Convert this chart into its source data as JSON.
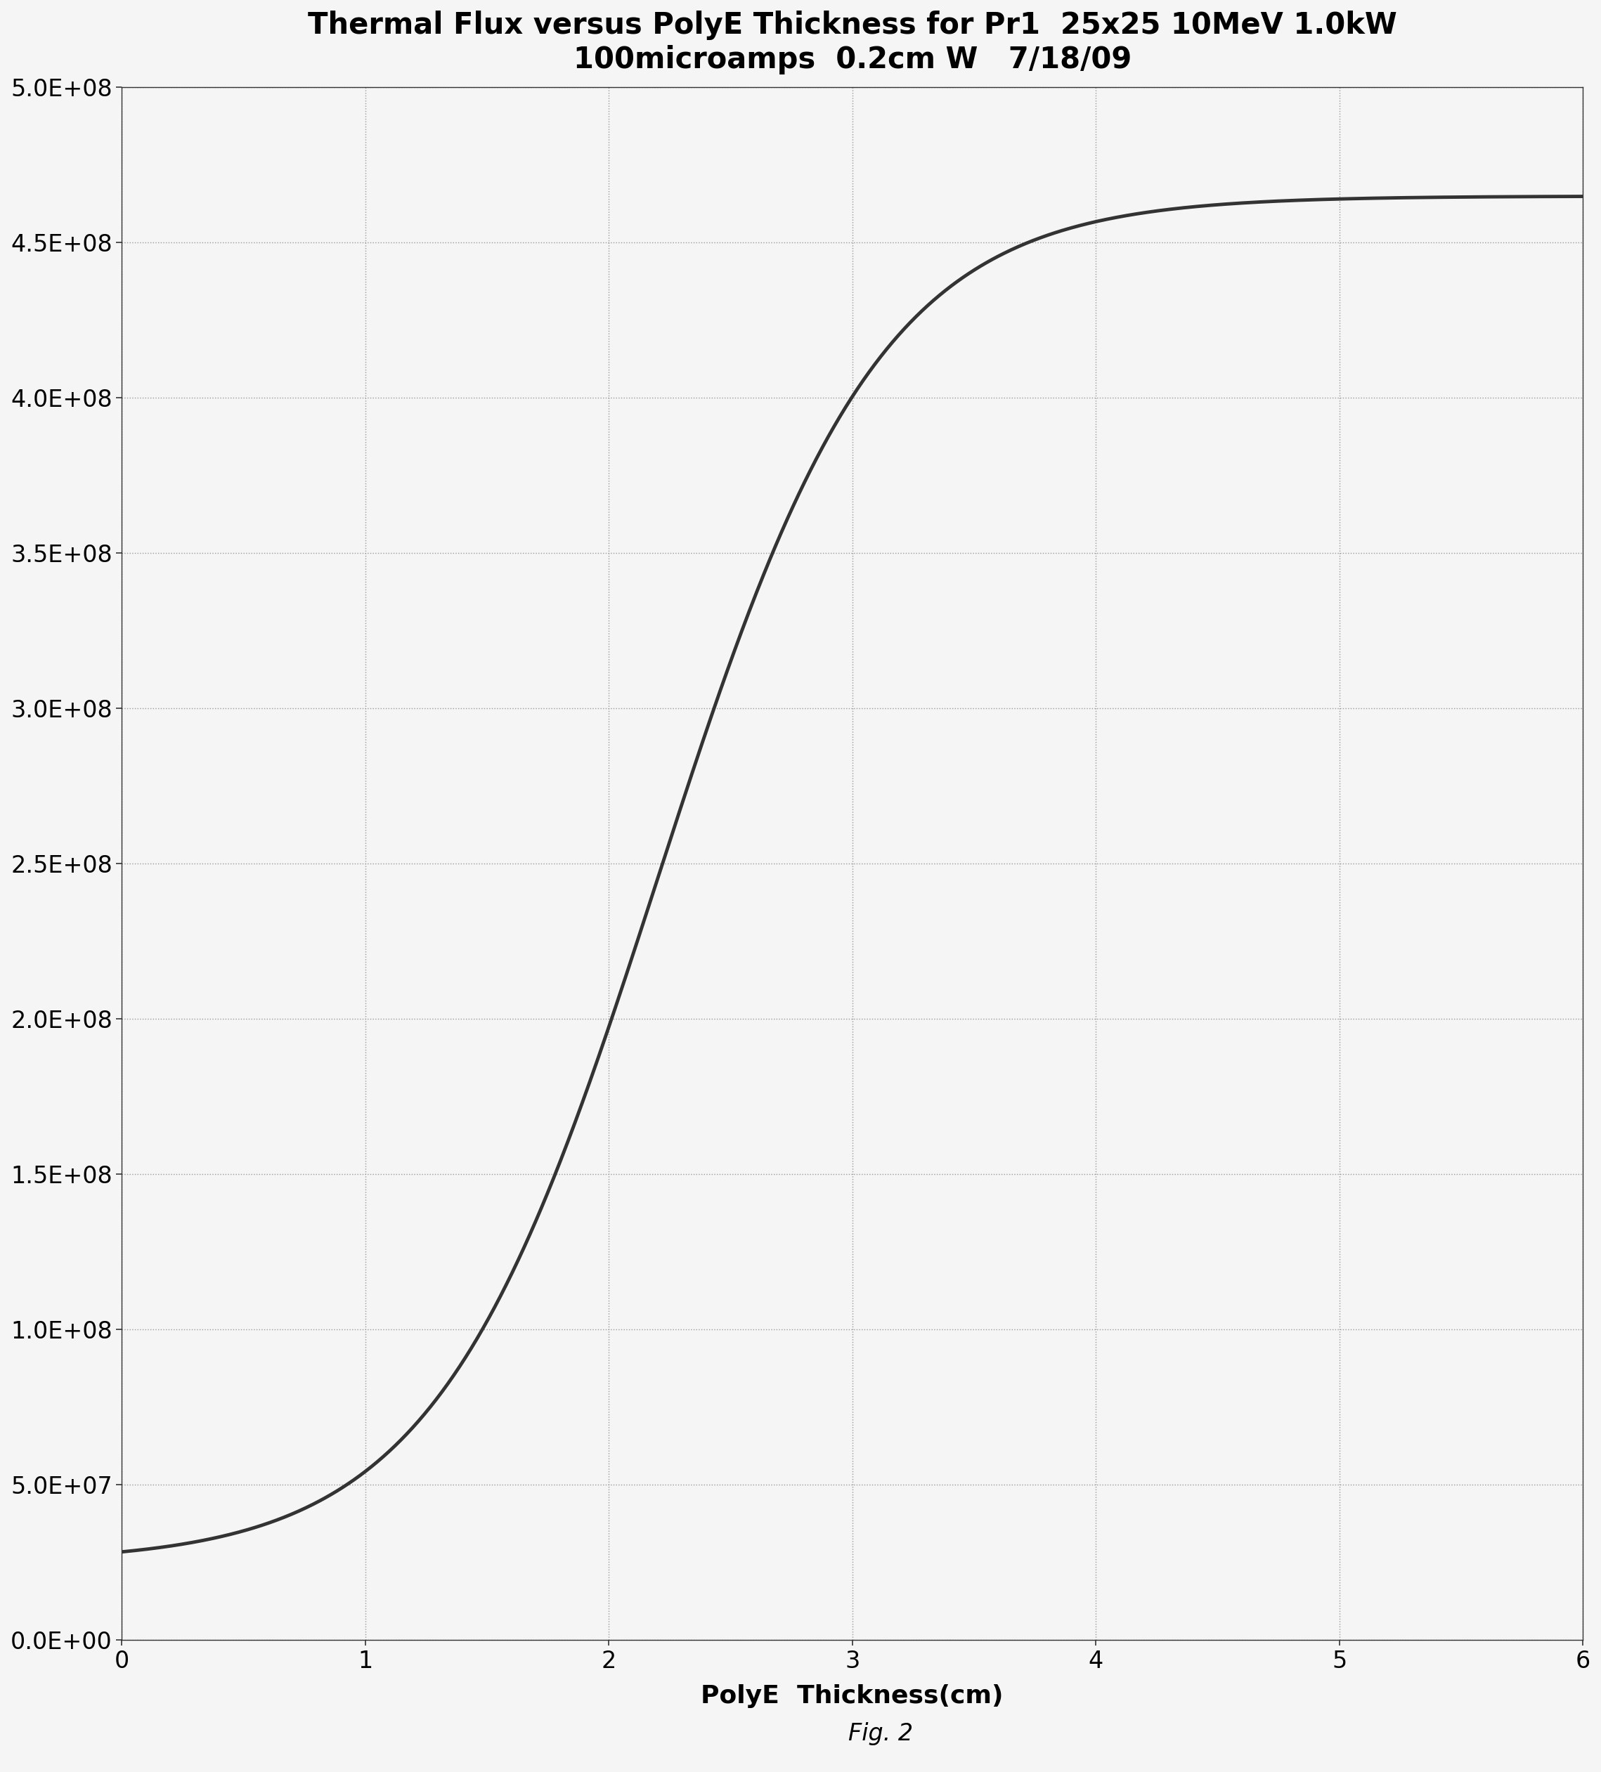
{
  "title_line1": "Thermal Flux versus PolyE Thickness for Pr1  25x25 10MeV 1.0kW",
  "title_line2": "100microamps  0.2cm W   7/18/09",
  "xlabel": "PolyE  Thickness(cm)",
  "caption": "Fig. 2",
  "xlim": [
    0,
    6
  ],
  "ylim": [
    0,
    500000000.0
  ],
  "yticks": [
    0,
    50000000.0,
    100000000.0,
    150000000.0,
    200000000.0,
    250000000.0,
    300000000.0,
    350000000.0,
    400000000.0,
    450000000.0,
    500000000.0
  ],
  "ytick_labels": [
    "0.0E+00",
    "5.0E+07",
    "1.0E+08",
    "1.5E+08",
    "2.0E+08",
    "2.5E+08",
    "3.0E+08",
    "3.5E+08",
    "4.0E+08",
    "4.5E+08",
    "5.0E+08"
  ],
  "xticks": [
    0,
    1,
    2,
    3,
    4,
    5,
    6
  ],
  "line_color": "#333333",
  "line_width": 3.5,
  "grid_color": "#999999",
  "background_color": "#f5f5f5",
  "title_fontsize": 30,
  "label_fontsize": 26,
  "tick_fontsize": 24,
  "caption_fontsize": 24,
  "sigmoid_x0": 2.2,
  "sigmoid_k": 2.2,
  "y_min": 25000000.0,
  "y_max": 465000000.0
}
